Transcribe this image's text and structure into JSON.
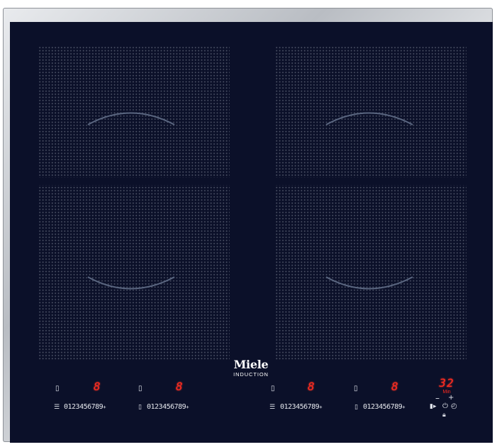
{
  "brand": {
    "name": "Miele",
    "subtitle": "INDUCTION"
  },
  "zones": [
    {
      "id": "front-left",
      "display": "8",
      "scale": "0123456789",
      "select_icon": "zone-select-icon",
      "function_icon": "keep-warm-icon",
      "scale_plus": "+"
    },
    {
      "id": "rear-left",
      "display": "8",
      "scale": "0123456789",
      "select_icon": "zone-select-icon",
      "function_icon": "flex-zone-icon",
      "scale_plus": "+"
    },
    {
      "id": "front-right",
      "display": "8",
      "scale": "0123456789",
      "select_icon": "zone-select-icon",
      "function_icon": "keep-warm-icon",
      "scale_plus": "+"
    },
    {
      "id": "rear-right",
      "display": "8",
      "scale": "0123456789",
      "select_icon": "zone-select-icon",
      "function_icon": "flex-zone-icon",
      "scale_plus": "+"
    }
  ],
  "timer": {
    "value": "32",
    "unit": "Min",
    "minus": "–",
    "plus": "+"
  },
  "colors": {
    "glass": "#0b1029",
    "display_red": "#ff2a1f",
    "frame": "#c6c9ce",
    "dots": "#4c5266"
  },
  "icons": [
    "zone-select-icon",
    "keep-warm-icon",
    "flex-zone-icon",
    "booster-icon",
    "power-icon",
    "timer-icon",
    "lock-icon"
  ]
}
